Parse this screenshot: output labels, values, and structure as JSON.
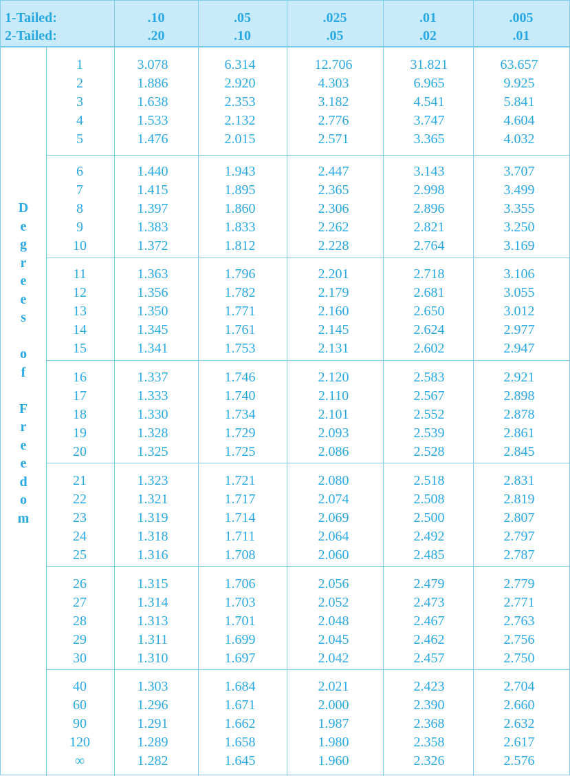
{
  "header": {
    "one_tailed_label": "1-Tailed:",
    "two_tailed_label": "2-Tailed:",
    "columns": [
      {
        "one_tailed": ".10",
        "two_tailed": ".20"
      },
      {
        "one_tailed": ".05",
        "two_tailed": ".10"
      },
      {
        "one_tailed": ".025",
        "two_tailed": ".05"
      },
      {
        "one_tailed": ".01",
        "two_tailed": ".02"
      },
      {
        "one_tailed": ".005",
        "two_tailed": ".01"
      }
    ]
  },
  "side_label": [
    "D",
    "e",
    "g",
    "r",
    "e",
    "e",
    "s",
    "",
    "o",
    "f",
    "",
    "F",
    "r",
    "e",
    "e",
    "d",
    "o",
    "m"
  ],
  "groups": [
    {
      "rows": [
        {
          "df": "1",
          "values": [
            "3.078",
            "6.314",
            "12.706",
            "31.821",
            "63.657"
          ]
        },
        {
          "df": "2",
          "values": [
            "1.886",
            "2.920",
            "4.303",
            "6.965",
            "9.925"
          ]
        },
        {
          "df": "3",
          "values": [
            "1.638",
            "2.353",
            "3.182",
            "4.541",
            "5.841"
          ]
        },
        {
          "df": "4",
          "values": [
            "1.533",
            "2.132",
            "2.776",
            "3.747",
            "4.604"
          ]
        },
        {
          "df": "5",
          "values": [
            "1.476",
            "2.015",
            "2.571",
            "3.365",
            "4.032"
          ]
        }
      ]
    },
    {
      "rows": [
        {
          "df": "6",
          "values": [
            "1.440",
            "1.943",
            "2.447",
            "3.143",
            "3.707"
          ]
        },
        {
          "df": "7",
          "values": [
            "1.415",
            "1.895",
            "2.365",
            "2.998",
            "3.499"
          ]
        },
        {
          "df": "8",
          "values": [
            "1.397",
            "1.860",
            "2.306",
            "2.896",
            "3.355"
          ]
        },
        {
          "df": "9",
          "values": [
            "1.383",
            "1.833",
            "2.262",
            "2.821",
            "3.250"
          ]
        },
        {
          "df": "10",
          "values": [
            "1.372",
            "1.812",
            "2.228",
            "2.764",
            "3.169"
          ]
        }
      ]
    },
    {
      "rows": [
        {
          "df": "11",
          "values": [
            "1.363",
            "1.796",
            "2.201",
            "2.718",
            "3.106"
          ]
        },
        {
          "df": "12",
          "values": [
            "1.356",
            "1.782",
            "2.179",
            "2.681",
            "3.055"
          ]
        },
        {
          "df": "13",
          "values": [
            "1.350",
            "1.771",
            "2.160",
            "2.650",
            "3.012"
          ]
        },
        {
          "df": "14",
          "values": [
            "1.345",
            "1.761",
            "2.145",
            "2.624",
            "2.977"
          ]
        },
        {
          "df": "15",
          "values": [
            "1.341",
            "1.753",
            "2.131",
            "2.602",
            "2.947"
          ]
        }
      ]
    },
    {
      "rows": [
        {
          "df": "16",
          "values": [
            "1.337",
            "1.746",
            "2.120",
            "2.583",
            "2.921"
          ]
        },
        {
          "df": "17",
          "values": [
            "1.333",
            "1.740",
            "2.110",
            "2.567",
            "2.898"
          ]
        },
        {
          "df": "18",
          "values": [
            "1.330",
            "1.734",
            "2.101",
            "2.552",
            "2.878"
          ]
        },
        {
          "df": "19",
          "values": [
            "1.328",
            "1.729",
            "2.093",
            "2.539",
            "2.861"
          ]
        },
        {
          "df": "20",
          "values": [
            "1.325",
            "1.725",
            "2.086",
            "2.528",
            "2.845"
          ]
        }
      ]
    },
    {
      "rows": [
        {
          "df": "21",
          "values": [
            "1.323",
            "1.721",
            "2.080",
            "2.518",
            "2.831"
          ]
        },
        {
          "df": "22",
          "values": [
            "1.321",
            "1.717",
            "2.074",
            "2.508",
            "2.819"
          ]
        },
        {
          "df": "23",
          "values": [
            "1.319",
            "1.714",
            "2.069",
            "2.500",
            "2.807"
          ]
        },
        {
          "df": "24",
          "values": [
            "1.318",
            "1.711",
            "2.064",
            "2.492",
            "2.797"
          ]
        },
        {
          "df": "25",
          "values": [
            "1.316",
            "1.708",
            "2.060",
            "2.485",
            "2.787"
          ]
        }
      ]
    },
    {
      "rows": [
        {
          "df": "26",
          "values": [
            "1.315",
            "1.706",
            "2.056",
            "2.479",
            "2.779"
          ]
        },
        {
          "df": "27",
          "values": [
            "1.314",
            "1.703",
            "2.052",
            "2.473",
            "2.771"
          ]
        },
        {
          "df": "28",
          "values": [
            "1.313",
            "1.701",
            "2.048",
            "2.467",
            "2.763"
          ]
        },
        {
          "df": "29",
          "values": [
            "1.311",
            "1.699",
            "2.045",
            "2.462",
            "2.756"
          ]
        },
        {
          "df": "30",
          "values": [
            "1.310",
            "1.697",
            "2.042",
            "2.457",
            "2.750"
          ]
        }
      ]
    },
    {
      "rows": [
        {
          "df": "40",
          "values": [
            "1.303",
            "1.684",
            "2.021",
            "2.423",
            "2.704"
          ]
        },
        {
          "df": "60",
          "values": [
            "1.296",
            "1.671",
            "2.000",
            "2.390",
            "2.660"
          ]
        },
        {
          "df": "90",
          "values": [
            "1.291",
            "1.662",
            "1.987",
            "2.368",
            "2.632"
          ]
        },
        {
          "df": "120",
          "values": [
            "1.289",
            "1.658",
            "1.980",
            "2.358",
            "2.617"
          ]
        },
        {
          "df": "∞",
          "values": [
            "1.282",
            "1.645",
            "1.960",
            "2.326",
            "2.576"
          ]
        }
      ]
    }
  ]
}
